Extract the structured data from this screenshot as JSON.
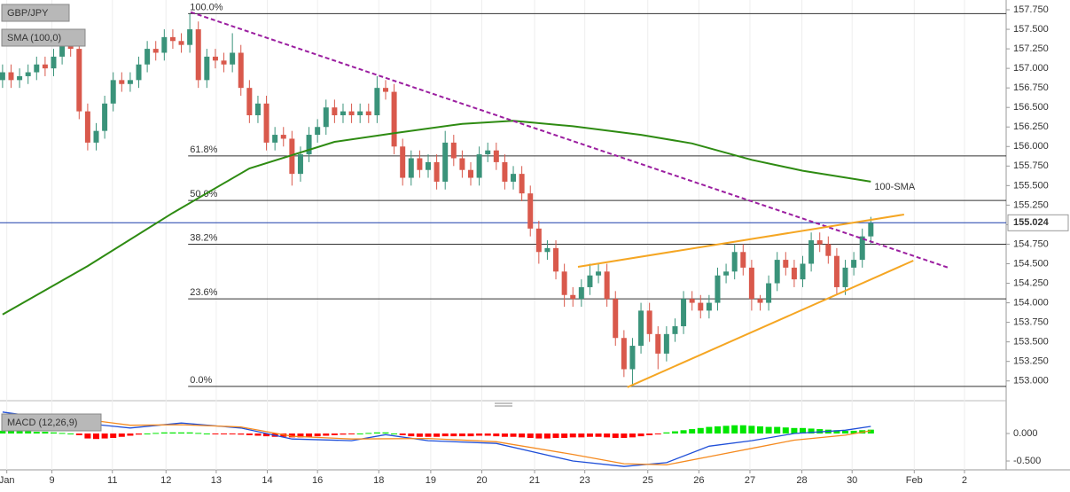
{
  "chart_data": [
    {
      "type": "candlestick",
      "title": "GBP/JPY",
      "xlim": [
        -0.3,
        117.9
      ],
      "ylim": [
        152.77,
        157.875
      ],
      "yticks": [
        {
          "value": 153,
          "label": "153.000"
        },
        {
          "value": 153.25,
          "label": "153.250"
        },
        {
          "value": 153.5,
          "label": "153.500"
        },
        {
          "value": 153.75,
          "label": "153.750"
        },
        {
          "value": 154,
          "label": "154.000"
        },
        {
          "value": 154.25,
          "label": "154.250"
        },
        {
          "value": 154.5,
          "label": "154.500"
        },
        {
          "value": 154.75,
          "label": "154.750"
        },
        {
          "value": 155,
          "label": "155.000"
        },
        {
          "value": 155.25,
          "label": "155.250"
        },
        {
          "value": 155.5,
          "label": "155.500"
        },
        {
          "value": 155.75,
          "label": "155.750"
        },
        {
          "value": 156,
          "label": "156.000"
        },
        {
          "value": 156.25,
          "label": "156.250"
        },
        {
          "value": 156.5,
          "label": "156.500"
        },
        {
          "value": 156.75,
          "label": "156.750"
        },
        {
          "value": 157,
          "label": "157.000"
        },
        {
          "value": 157.25,
          "label": "157.250"
        },
        {
          "value": 157.5,
          "label": "157.500"
        },
        {
          "value": 157.75,
          "label": "157.750"
        }
      ],
      "up_color": "#3a937a",
      "down_color": "#d9594c",
      "open": [
        156.85,
        156.95,
        156.85,
        156.9,
        156.95,
        157.05,
        157.0,
        157.15,
        157.3,
        157.25,
        156.45,
        156.05,
        156.2,
        156.55,
        156.85,
        156.8,
        156.85,
        157.05,
        157.25,
        157.2,
        157.4,
        157.35,
        157.3,
        157.5,
        156.85,
        157.15,
        157.1,
        157.05,
        157.2,
        156.75,
        156.4,
        156.55,
        156.05,
        156.15,
        156.1,
        155.65,
        155.9,
        156.15,
        156.25,
        156.5,
        156.4,
        156.45,
        156.4,
        156.45,
        156.4,
        156.75,
        156.7,
        156.0,
        155.6,
        155.85,
        155.7,
        155.8,
        155.55,
        156.05,
        155.85,
        155.7,
        155.6,
        155.9,
        155.95,
        155.8,
        155.55,
        155.65,
        155.4,
        154.95,
        154.65,
        154.7,
        154.4,
        154.1,
        154.05,
        154.2,
        154.35,
        154.4,
        154.05,
        153.55,
        153.15,
        153.45,
        153.9,
        153.6,
        153.35,
        153.6,
        153.7,
        154.05,
        154.0,
        153.9,
        154.0,
        154.35,
        154.4,
        154.65,
        154.45,
        154.05,
        154.0,
        154.25,
        154.55,
        154.45,
        154.3,
        154.5,
        154.8,
        154.75,
        154.6,
        154.2,
        154.45,
        154.55,
        154.85
      ],
      "high": [
        157.05,
        157.05,
        157.0,
        157.05,
        157.15,
        157.15,
        157.25,
        157.4,
        157.4,
        157.35,
        156.55,
        156.3,
        156.65,
        156.95,
        156.95,
        156.95,
        157.15,
        157.35,
        157.35,
        157.5,
        157.5,
        157.45,
        157.7,
        157.6,
        157.25,
        157.25,
        157.2,
        157.45,
        157.3,
        156.85,
        156.65,
        156.65,
        156.25,
        156.25,
        156.2,
        156.0,
        156.25,
        156.35,
        156.6,
        156.6,
        156.55,
        156.55,
        156.55,
        156.55,
        156.9,
        156.85,
        156.8,
        156.1,
        155.95,
        155.95,
        155.9,
        155.9,
        156.2,
        156.15,
        155.95,
        155.8,
        156.0,
        156.05,
        156.05,
        155.9,
        155.75,
        155.75,
        155.5,
        155.05,
        154.8,
        154.8,
        154.5,
        154.2,
        154.3,
        154.5,
        154.5,
        154.5,
        154.15,
        153.65,
        153.55,
        154.0,
        154.0,
        153.7,
        153.7,
        153.8,
        154.15,
        154.15,
        154.1,
        154.1,
        154.45,
        154.5,
        154.75,
        154.75,
        154.55,
        154.1,
        154.35,
        154.65,
        154.65,
        154.55,
        154.6,
        154.9,
        154.9,
        154.85,
        154.7,
        154.55,
        154.65,
        154.95,
        155.1
      ],
      "low": [
        156.75,
        156.75,
        156.75,
        156.8,
        156.85,
        156.9,
        156.9,
        157.05,
        157.15,
        156.35,
        155.95,
        155.95,
        156.1,
        156.45,
        156.7,
        156.7,
        156.75,
        156.95,
        157.1,
        157.1,
        157.25,
        157.2,
        157.2,
        156.75,
        156.75,
        157.0,
        156.95,
        156.95,
        156.65,
        156.3,
        156.3,
        155.95,
        155.95,
        156.0,
        155.5,
        155.55,
        155.8,
        156.05,
        156.15,
        156.3,
        156.3,
        156.3,
        156.3,
        156.3,
        156.3,
        156.6,
        155.9,
        155.5,
        155.5,
        155.6,
        155.6,
        155.45,
        155.45,
        155.75,
        155.6,
        155.5,
        155.5,
        155.8,
        155.7,
        155.45,
        155.45,
        155.3,
        154.85,
        154.5,
        154.55,
        154.3,
        153.95,
        153.95,
        153.95,
        154.1,
        154.25,
        153.95,
        153.45,
        153.05,
        152.93,
        153.35,
        153.5,
        153.15,
        153.25,
        153.5,
        153.6,
        153.9,
        153.8,
        153.8,
        153.9,
        154.25,
        154.3,
        154.35,
        153.9,
        153.9,
        153.9,
        154.15,
        154.35,
        154.2,
        154.2,
        154.4,
        154.65,
        154.5,
        154.1,
        154.1,
        154.35,
        154.45,
        154.75
      ],
      "close": [
        156.95,
        156.85,
        156.9,
        156.95,
        157.05,
        157.0,
        157.15,
        157.3,
        157.25,
        156.45,
        156.05,
        156.2,
        156.55,
        156.85,
        156.8,
        156.85,
        157.05,
        157.25,
        157.2,
        157.4,
        157.35,
        157.3,
        157.5,
        156.85,
        157.15,
        157.1,
        157.05,
        157.2,
        156.75,
        156.4,
        156.55,
        156.05,
        156.15,
        156.1,
        155.65,
        155.9,
        156.15,
        156.25,
        156.5,
        156.4,
        156.45,
        156.4,
        156.45,
        156.4,
        156.75,
        156.7,
        156.0,
        155.6,
        155.85,
        155.7,
        155.8,
        155.55,
        156.05,
        155.85,
        155.7,
        155.6,
        155.9,
        155.95,
        155.8,
        155.55,
        155.65,
        155.4,
        154.95,
        154.65,
        154.7,
        154.4,
        154.1,
        154.05,
        154.2,
        154.35,
        154.4,
        154.05,
        153.55,
        153.15,
        153.45,
        153.9,
        153.6,
        153.35,
        153.6,
        153.7,
        154.05,
        154.0,
        153.9,
        154.0,
        154.35,
        154.4,
        154.65,
        154.45,
        154.05,
        154.0,
        154.25,
        154.55,
        154.45,
        154.3,
        154.5,
        154.8,
        154.75,
        154.6,
        154.2,
        154.45,
        154.55,
        154.85,
        155.02
      ],
      "sma": {
        "name": "SMA (100,0)",
        "annotation": "100-SMA",
        "color": "#2e8b12",
        "x": [
          0,
          10,
          20,
          29,
          39,
          46,
          54,
          60,
          67,
          75,
          81,
          88,
          94,
          102
        ],
        "values": [
          153.85,
          154.47,
          155.15,
          155.72,
          156.06,
          156.17,
          156.29,
          156.33,
          156.26,
          156.15,
          156.04,
          155.83,
          155.69,
          155.55
        ]
      },
      "trendlines": [
        {
          "color": "#9b1ea0",
          "dashed": true,
          "x": [
            22.1,
            111.1
          ],
          "values": [
            157.72,
            154.45
          ]
        },
        {
          "color": "#f5a623",
          "dashed": false,
          "x": [
            67.6,
            105.9
          ],
          "values": [
            154.46,
            155.13
          ]
        },
        {
          "color": "#f5a623",
          "dashed": false,
          "x": [
            73.4,
            107
          ],
          "values": [
            152.92,
            154.54
          ]
        }
      ],
      "fibonacci": {
        "from": 21.8,
        "color": "#333333",
        "levels": [
          {
            "label": "100.0%",
            "value": 157.7
          },
          {
            "label": "61.8%",
            "value": 155.88
          },
          {
            "label": "50.0%",
            "value": 155.31
          },
          {
            "label": "38.2%",
            "value": 154.75
          },
          {
            "label": "23.6%",
            "value": 154.05
          },
          {
            "label": "0.0%",
            "value": 152.93
          }
        ]
      },
      "last_price": 155.024,
      "last_price_color": "#1c3faa"
    },
    {
      "type": "macd",
      "title": "MACD (12,26,9)",
      "xlim": [
        -0.3,
        117.9
      ],
      "ylim": [
        -0.661,
        0.468
      ],
      "yticks": [
        {
          "value": 0,
          "label": "0.000"
        },
        {
          "value": -0.5,
          "label": "-0.500"
        }
      ],
      "xticks": [
        {
          "value": 0.5,
          "label": "Jan"
        },
        {
          "value": 5.8,
          "label": "9"
        },
        {
          "value": 12.9,
          "label": "11"
        },
        {
          "value": 19.2,
          "label": "12"
        },
        {
          "value": 25.1,
          "label": "13"
        },
        {
          "value": 31.1,
          "label": "14"
        },
        {
          "value": 37,
          "label": "16"
        },
        {
          "value": 44.2,
          "label": "18"
        },
        {
          "value": 50.3,
          "label": "19"
        },
        {
          "value": 56.3,
          "label": "20"
        },
        {
          "value": 62.5,
          "label": "21"
        },
        {
          "value": 68.4,
          "label": "23"
        },
        {
          "value": 75.8,
          "label": "25"
        },
        {
          "value": 81.8,
          "label": "26"
        },
        {
          "value": 87.8,
          "label": "27"
        },
        {
          "value": 93.9,
          "label": "28"
        },
        {
          "value": 99.8,
          "label": "30"
        },
        {
          "value": 107.1,
          "label": "Feb"
        },
        {
          "value": 113,
          "label": "2"
        }
      ],
      "grid": "x",
      "histogram": {
        "up_color": "#00e600",
        "down_color": "#ff0000",
        "values": [
          0.05,
          0.05,
          0.04,
          0.04,
          0.03,
          0.03,
          0.02,
          0.01,
          0.0,
          -0.03,
          -0.09,
          -0.1,
          -0.09,
          -0.08,
          -0.06,
          -0.04,
          -0.02,
          0.0,
          0.01,
          0.02,
          0.02,
          0.02,
          0.02,
          0.01,
          0.0,
          -0.01,
          -0.01,
          -0.01,
          -0.02,
          -0.03,
          -0.04,
          -0.05,
          -0.06,
          -0.06,
          -0.07,
          -0.07,
          -0.06,
          -0.05,
          -0.04,
          -0.03,
          -0.02,
          -0.01,
          0.0,
          0.01,
          0.02,
          0.02,
          0.0,
          -0.03,
          -0.05,
          -0.06,
          -0.06,
          -0.06,
          -0.05,
          -0.05,
          -0.05,
          -0.05,
          -0.04,
          -0.04,
          -0.05,
          -0.06,
          -0.06,
          -0.07,
          -0.08,
          -0.09,
          -0.09,
          -0.08,
          -0.08,
          -0.07,
          -0.07,
          -0.06,
          -0.06,
          -0.07,
          -0.08,
          -0.08,
          -0.07,
          -0.05,
          -0.03,
          -0.01,
          0.02,
          0.04,
          0.06,
          0.08,
          0.1,
          0.12,
          0.13,
          0.14,
          0.15,
          0.15,
          0.14,
          0.13,
          0.12,
          0.12,
          0.11,
          0.1,
          0.1,
          0.09,
          0.08,
          0.07,
          0.06,
          0.05,
          0.05,
          0.06,
          0.07
        ]
      },
      "series": [
        {
          "color": "#1f4fd8",
          "x": [
            0,
            10,
            15,
            21,
            28,
            34,
            41,
            45,
            50,
            58,
            67,
            73,
            78,
            83,
            88,
            93,
            99,
            102
          ],
          "values": [
            0.39,
            0.18,
            0.1,
            0.19,
            0.1,
            -0.1,
            -0.13,
            -0.02,
            -0.13,
            -0.18,
            -0.5,
            -0.6,
            -0.53,
            -0.23,
            -0.13,
            0.0,
            0.06,
            0.13
          ]
        },
        {
          "color": "#f58a1f",
          "x": [
            0,
            10,
            15,
            21,
            28,
            34,
            41,
            50,
            58,
            67,
            73,
            78,
            83,
            88,
            93,
            99,
            102
          ],
          "values": [
            0.35,
            0.25,
            0.15,
            0.16,
            0.12,
            -0.05,
            -0.1,
            -0.09,
            -0.15,
            -0.38,
            -0.55,
            -0.57,
            -0.42,
            -0.27,
            -0.12,
            -0.03,
            0.05
          ]
        }
      ]
    }
  ]
}
